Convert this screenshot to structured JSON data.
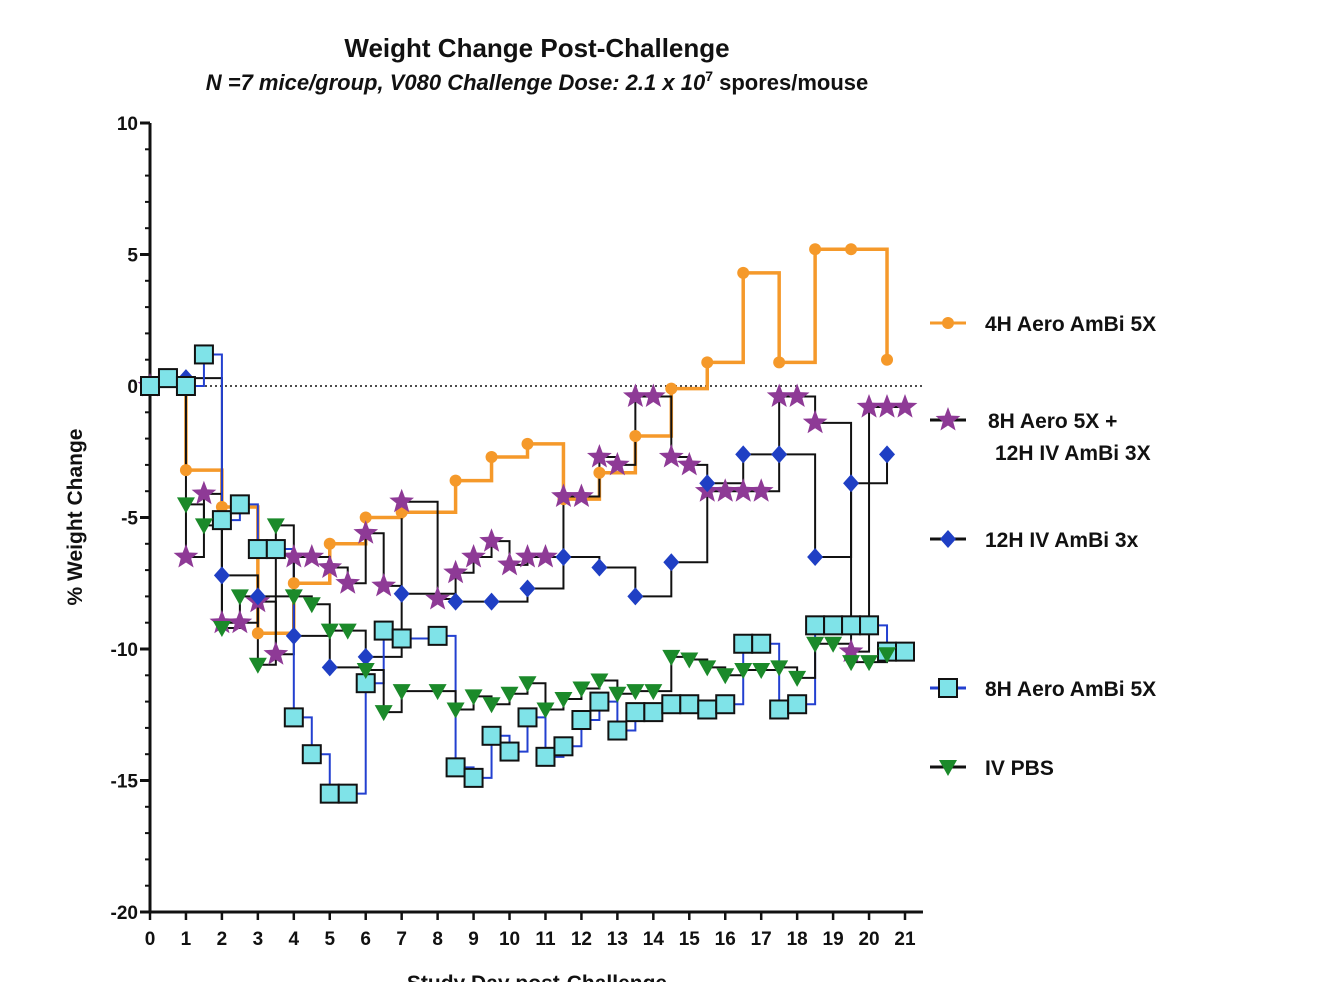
{
  "chart_data": {
    "type": "step",
    "title": "Weight Change Post-Challenge",
    "subtitle": [
      "N =7 mice/group, V080 Challenge Dose: 2.1 x 10",
      "7",
      " spores/mouse"
    ],
    "x_label": "Study Day post-Challenge",
    "y_label": "% Weight Change",
    "xlim": [
      0,
      21.5
    ],
    "ylim": [
      -20,
      10
    ],
    "xticks": [
      0,
      1,
      2,
      3,
      4,
      5,
      6,
      7,
      8,
      9,
      10,
      11,
      12,
      13,
      14,
      15,
      16,
      17,
      18,
      19,
      20,
      21
    ],
    "yticks": [
      -20,
      -15,
      -10,
      -5,
      0,
      5,
      10
    ],
    "y_minor_step": 1,
    "zero_line": true,
    "series": [
      {
        "name": "4H Aero AmBi 5X",
        "color": "#f5992a",
        "line_color": "#f5992a",
        "marker": "circle",
        "x": [
          0,
          1,
          2,
          3,
          4,
          5,
          6,
          7,
          8.5,
          9.5,
          10.5,
          11.5,
          12.5,
          13.5,
          14.5,
          15.5,
          16.5,
          17.5,
          18.5,
          19.5,
          20.5
        ],
        "values": [
          0,
          -3.2,
          -4.6,
          -9.4,
          -7.5,
          -6,
          -5,
          -4.8,
          -3.6,
          -2.7,
          -2.2,
          -4.3,
          -3.3,
          -1.9,
          -0.1,
          0.9,
          4.3,
          0.9,
          5.2,
          5.2,
          1
        ]
      },
      {
        "name": "8H Aero 5X + 12H IV AmBi 3X",
        "color": "#8e3a96",
        "line_color": "#111111",
        "marker": "star",
        "x": [
          0,
          1,
          1.5,
          2,
          2.5,
          3,
          3.5,
          4,
          4.5,
          5,
          5.5,
          6,
          6.5,
          7,
          8,
          8.5,
          9,
          9.5,
          10,
          10.5,
          11,
          11.5,
          12,
          12.5,
          13,
          13.5,
          14,
          14.5,
          15,
          15.5,
          16,
          16.5,
          17,
          17.5,
          18,
          18.5,
          19.5,
          20,
          20.5,
          21
        ],
        "values": [
          0,
          -6.5,
          -4.1,
          -9,
          -9,
          -8.2,
          -10.2,
          -6.5,
          -6.5,
          -6.9,
          -7.5,
          -5.6,
          -7.6,
          -4.4,
          -8.1,
          -7.1,
          -6.5,
          -5.9,
          -6.8,
          -6.5,
          -6.5,
          -4.2,
          -4.2,
          -2.7,
          -3,
          -0.4,
          -0.4,
          -2.7,
          -3,
          -4,
          -4,
          -4,
          -4,
          -0.4,
          -0.4,
          -1.4,
          -10.1,
          -0.8,
          -0.8,
          -0.8
        ]
      },
      {
        "name": "12H IV AmBi 3x",
        "color": "#1f3fc4",
        "line_color": "#111111",
        "marker": "diamond",
        "x": [
          0,
          1,
          2,
          3,
          4,
          5,
          6,
          7,
          8.5,
          9.5,
          10.5,
          11.5,
          12.5,
          13.5,
          14.5,
          15.5,
          16.5,
          17.5,
          18.5,
          19.5,
          20.5
        ],
        "values": [
          0,
          0.3,
          -7.2,
          -8,
          -9.5,
          -10.7,
          -10.3,
          -7.9,
          -8.2,
          -8.2,
          -7.7,
          -6.5,
          -6.9,
          -8,
          -6.7,
          -3.7,
          -2.6,
          -2.6,
          -6.5,
          -3.7,
          -2.6
        ]
      },
      {
        "name": "8H Aero AmBi 5X",
        "color": "#7fe3e8",
        "line_color": "#2340d0",
        "marker": "square",
        "x": [
          0,
          0.5,
          1,
          1.5,
          2,
          2.5,
          3,
          3.5,
          4,
          4.5,
          5,
          5.5,
          6,
          6.5,
          7,
          8,
          8.5,
          9,
          9.5,
          10,
          10.5,
          11,
          11.5,
          12,
          12.5,
          13,
          13.5,
          14,
          14.5,
          15,
          15.5,
          16,
          16.5,
          17,
          17.5,
          18,
          18.5,
          19,
          19.5,
          20,
          20.5,
          21
        ],
        "values": [
          0,
          0.3,
          0,
          1.2,
          -5.1,
          -4.5,
          -6.2,
          -6.2,
          -12.6,
          -14,
          -15.5,
          -15.5,
          -11.3,
          -9.3,
          -9.6,
          -9.5,
          -14.5,
          -14.9,
          -13.3,
          -13.9,
          -12.6,
          -14.1,
          -13.7,
          -12.7,
          -12,
          -13.1,
          -12.4,
          -12.4,
          -12.1,
          -12.1,
          -12.3,
          -12.1,
          -9.8,
          -9.8,
          -12.3,
          -12.1,
          -9.1,
          -9.1,
          -9.1,
          -9.1,
          -10.1,
          -10.1
        ]
      },
      {
        "name": "IV PBS",
        "color": "#1b8a2a",
        "line_color": "#111111",
        "marker": "triangle-down",
        "x": [
          1,
          1.5,
          2,
          2.5,
          3,
          3.5,
          4,
          4.5,
          5,
          5.5,
          6,
          6.5,
          7,
          8,
          8.5,
          9,
          9.5,
          10,
          10.5,
          11,
          11.5,
          12,
          12.5,
          13,
          13.5,
          14,
          14.5,
          15,
          15.5,
          16,
          16.5,
          17,
          17.5,
          18,
          18.5,
          19,
          19.5,
          20,
          20.5
        ],
        "values": [
          -4.5,
          -5.3,
          -9.2,
          -8,
          -10.6,
          -5.3,
          -8,
          -8.3,
          -9.3,
          -9.3,
          -10.8,
          -12.4,
          -11.6,
          -11.6,
          -12.3,
          -11.8,
          -12.1,
          -11.7,
          -11.3,
          -12.3,
          -11.9,
          -11.5,
          -11.2,
          -11.7,
          -11.6,
          -11.6,
          -10.3,
          -10.4,
          -10.7,
          -11,
          -10.8,
          -10.8,
          -10.7,
          -11.1,
          -9.8,
          -9.8,
          -10.5,
          -10.5,
          -10.2
        ]
      }
    ]
  }
}
